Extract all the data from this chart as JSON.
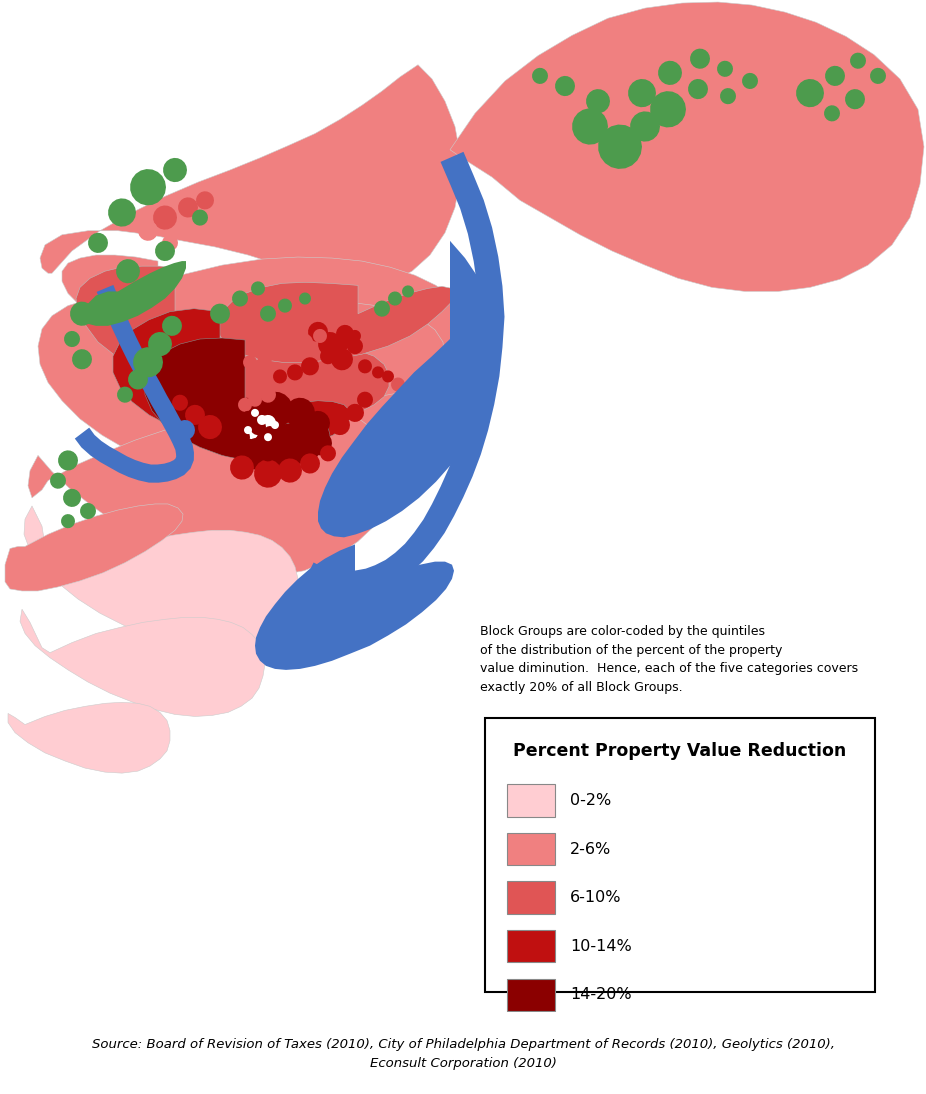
{
  "source_text_line1": "Source: Board of Revision of Taxes (2010), City of Philadelphia Department of Records (2010), Geolytics (2010),",
  "source_text_line2": "Econsult Corporation (2010)",
  "annotation_text": "Block Groups are color-coded by the quintiles\nof the distribution of the percent of the property\nvalue diminution.  Hence, each of the five categories covers\nexactly 20% of all Block Groups.",
  "legend_title": "Percent Property Value Reduction",
  "legend_items": [
    {
      "label": "0-2%",
      "color": "#FFCDD2"
    },
    {
      "label": "2-6%",
      "color": "#F08080"
    },
    {
      "label": "6-10%",
      "color": "#E05555"
    },
    {
      "label": "10-14%",
      "color": "#C01010"
    },
    {
      "label": "14-20%",
      "color": "#8B0000"
    }
  ],
  "water_color": "#4472C4",
  "park_color": "#4D9B4D",
  "bg_color": "#FFFFFF",
  "outline_color": "#BBBBBB"
}
